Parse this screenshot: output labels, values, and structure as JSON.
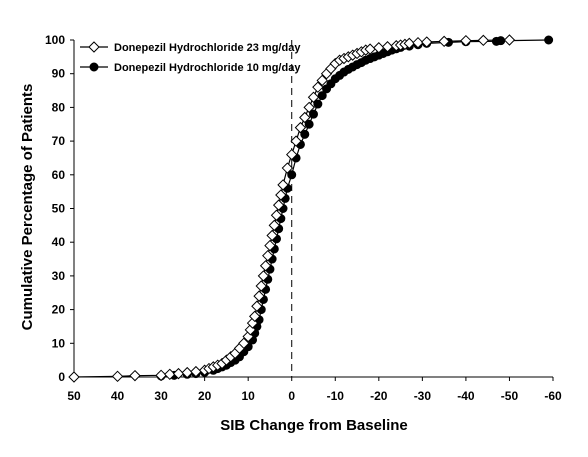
{
  "chart_data": {
    "type": "line",
    "xlabel": "SIB Change from Baseline",
    "ylabel": "Cumulative Percentage of Patients",
    "xlim": [
      50,
      -60
    ],
    "ylim": [
      0,
      100
    ],
    "x_ticks": [
      50,
      40,
      30,
      20,
      10,
      0,
      -10,
      -20,
      -30,
      -40,
      -50,
      -60
    ],
    "y_ticks": [
      0,
      10,
      20,
      30,
      40,
      50,
      60,
      70,
      80,
      90,
      100
    ],
    "reference_line_x": 0,
    "legend_position": "top-left",
    "series": [
      {
        "name": "Donepezil Hydrochloride 23 mg/day",
        "marker": "open-diamond",
        "color": "#000000",
        "points": [
          [
            50,
            0
          ],
          [
            40,
            0.2
          ],
          [
            36,
            0.4
          ],
          [
            30,
            0.5
          ],
          [
            28,
            0.8
          ],
          [
            26,
            1
          ],
          [
            24,
            1.3
          ],
          [
            22,
            1.6
          ],
          [
            20,
            2
          ],
          [
            19,
            2.5
          ],
          [
            18,
            3
          ],
          [
            17,
            3.5
          ],
          [
            16,
            4
          ],
          [
            15,
            5
          ],
          [
            14,
            6
          ],
          [
            13,
            7
          ],
          [
            12,
            8.5
          ],
          [
            11,
            10
          ],
          [
            10,
            12
          ],
          [
            9.5,
            14
          ],
          [
            9,
            16
          ],
          [
            8.5,
            18
          ],
          [
            8,
            21
          ],
          [
            7.5,
            24
          ],
          [
            7,
            27
          ],
          [
            6.5,
            30
          ],
          [
            6,
            33
          ],
          [
            5.5,
            36
          ],
          [
            5,
            39
          ],
          [
            4.5,
            42
          ],
          [
            4,
            45
          ],
          [
            3.5,
            48
          ],
          [
            3,
            51
          ],
          [
            2.5,
            54
          ],
          [
            2,
            57
          ],
          [
            1,
            62
          ],
          [
            0,
            66
          ],
          [
            -1,
            70
          ],
          [
            -2,
            74
          ],
          [
            -3,
            77
          ],
          [
            -4,
            80
          ],
          [
            -5,
            83
          ],
          [
            -6,
            86
          ],
          [
            -7,
            88
          ],
          [
            -8,
            90
          ],
          [
            -9,
            91.5
          ],
          [
            -10,
            93
          ],
          [
            -11,
            94
          ],
          [
            -12,
            94.5
          ],
          [
            -13,
            95
          ],
          [
            -14,
            95.5
          ],
          [
            -15,
            96
          ],
          [
            -16,
            96.5
          ],
          [
            -17,
            97
          ],
          [
            -18,
            97.3
          ],
          [
            -20,
            97.7
          ],
          [
            -22,
            98
          ],
          [
            -24,
            98.3
          ],
          [
            -25,
            98.5
          ],
          [
            -26,
            98.7
          ],
          [
            -27,
            99
          ],
          [
            -29,
            99.2
          ],
          [
            -31,
            99.4
          ],
          [
            -35,
            99.6
          ],
          [
            -40,
            99.8
          ],
          [
            -44,
            99.9
          ],
          [
            -50,
            100
          ]
        ]
      },
      {
        "name": "Donepezil Hydrochloride 10 mg/day",
        "marker": "filled-circle",
        "color": "#000000",
        "points": [
          [
            30,
            0.3
          ],
          [
            27,
            0.5
          ],
          [
            24,
            0.8
          ],
          [
            22,
            1
          ],
          [
            20,
            1.4
          ],
          [
            18,
            2
          ],
          [
            17,
            2.5
          ],
          [
            16,
            3
          ],
          [
            15,
            3.5
          ],
          [
            14,
            4.3
          ],
          [
            13,
            5
          ],
          [
            12,
            6
          ],
          [
            11,
            7.5
          ],
          [
            10,
            9
          ],
          [
            9,
            11
          ],
          [
            8.5,
            13
          ],
          [
            8,
            15
          ],
          [
            7.5,
            17
          ],
          [
            7,
            20
          ],
          [
            6.5,
            23
          ],
          [
            6,
            26
          ],
          [
            5.5,
            29
          ],
          [
            5,
            32
          ],
          [
            4.5,
            35
          ],
          [
            4,
            38
          ],
          [
            3.5,
            41
          ],
          [
            3,
            44
          ],
          [
            2.5,
            47
          ],
          [
            2,
            50
          ],
          [
            1.5,
            53
          ],
          [
            1,
            56
          ],
          [
            0,
            60
          ],
          [
            -1,
            65
          ],
          [
            -2,
            69
          ],
          [
            -3,
            72
          ],
          [
            -4,
            75
          ],
          [
            -5,
            78
          ],
          [
            -6,
            81
          ],
          [
            -7,
            83.5
          ],
          [
            -8,
            85.5
          ],
          [
            -9,
            87
          ],
          [
            -10,
            88.5
          ],
          [
            -11,
            89.5
          ],
          [
            -12,
            90.5
          ],
          [
            -13,
            91.3
          ],
          [
            -14,
            92
          ],
          [
            -15,
            92.7
          ],
          [
            -16,
            93.3
          ],
          [
            -17,
            94
          ],
          [
            -18,
            94.5
          ],
          [
            -19,
            95
          ],
          [
            -20,
            95.5
          ],
          [
            -21,
            96
          ],
          [
            -22,
            96.5
          ],
          [
            -23,
            97
          ],
          [
            -24,
            97.4
          ],
          [
            -25,
            97.8
          ],
          [
            -27,
            98.2
          ],
          [
            -29,
            98.6
          ],
          [
            -31,
            99
          ],
          [
            -36,
            99.3
          ],
          [
            -40,
            99.5
          ],
          [
            -47,
            99.6
          ],
          [
            -48,
            99.8
          ],
          [
            -59,
            100
          ]
        ]
      }
    ]
  }
}
